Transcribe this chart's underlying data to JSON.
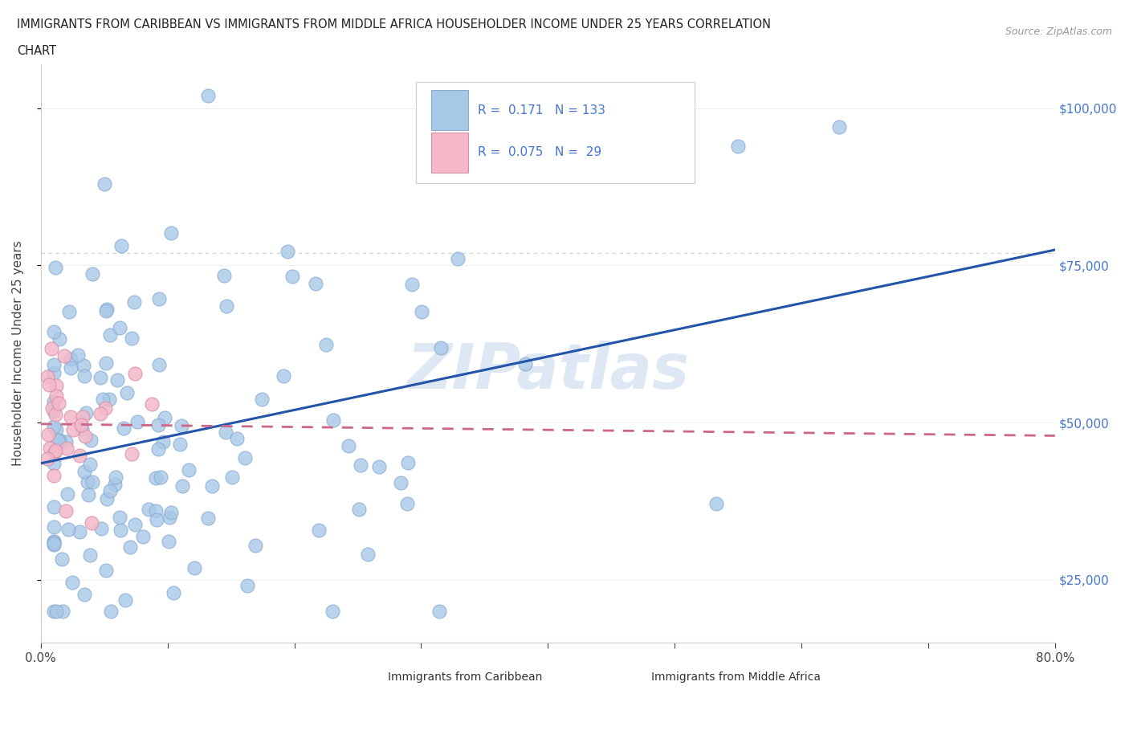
{
  "title_line1": "IMMIGRANTS FROM CARIBBEAN VS IMMIGRANTS FROM MIDDLE AFRICA HOUSEHOLDER INCOME UNDER 25 YEARS CORRELATION",
  "title_line2": "CHART",
  "source": "Source: ZipAtlas.com",
  "ylabel": "Householder Income Under 25 years",
  "caribbean_R": 0.171,
  "caribbean_N": 133,
  "middle_africa_R": 0.075,
  "middle_africa_N": 29,
  "caribbean_color": "#a8c8e8",
  "caribbean_edge_color": "#88aad0",
  "middle_africa_color": "#f4b8c8",
  "middle_africa_edge_color": "#d890a8",
  "trend_caribbean_color": "#2255aa",
  "trend_middle_africa_color": "#cc6688",
  "watermark": "ZIPatlas",
  "watermark_color": "#c8d8ee",
  "hline_y": 77000,
  "xlim": [
    0.0,
    0.8
  ],
  "ylim": [
    15000,
    107000
  ],
  "yticks": [
    25000,
    50000,
    75000,
    100000
  ],
  "xtick_vals": [
    0.0,
    0.1,
    0.2,
    0.3,
    0.4,
    0.5,
    0.6,
    0.7,
    0.8
  ],
  "right_yticklabels": [
    "$25,000",
    "$50,000",
    "$75,000",
    "$100,000"
  ],
  "right_ytick_color": "#4477cc"
}
